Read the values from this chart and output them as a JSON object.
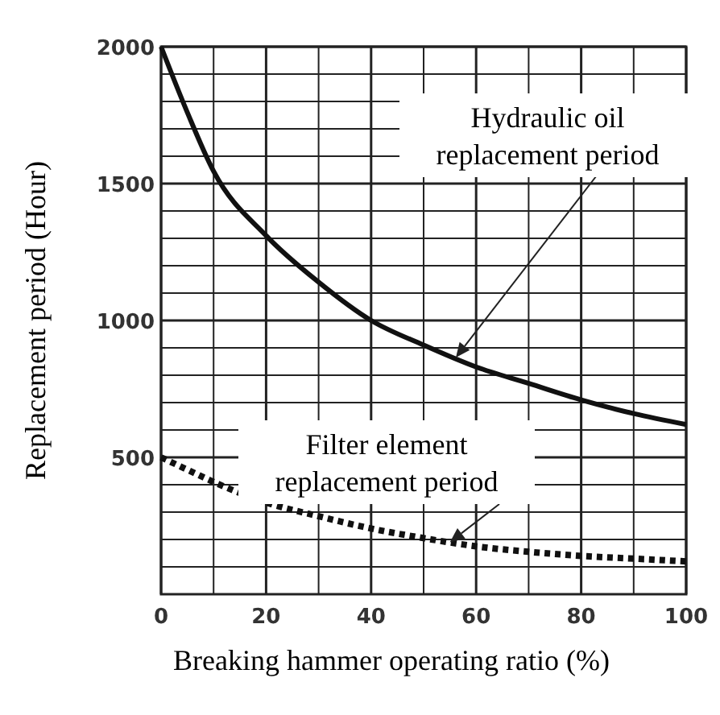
{
  "chart_data": {
    "type": "line",
    "xlabel": "Breaking hammer operating ratio (%)",
    "ylabel": "Replacement period (Hour)",
    "x": [
      0,
      5,
      10,
      20,
      30,
      40,
      50,
      60,
      70,
      80,
      90,
      100
    ],
    "series": [
      {
        "color": "#111111",
        "line_style": "solid",
        "values": [
          2000,
          1760,
          1545,
          1310,
          1140,
          1000,
          910,
          830,
          770,
          710,
          660,
          620
        ]
      },
      {
        "color": "#111111",
        "line_style": "dotted",
        "values": [
          500,
          455,
          410,
          335,
          285,
          240,
          205,
          175,
          155,
          140,
          130,
          120
        ]
      }
    ],
    "xlim": [
      0,
      100
    ],
    "ylim": [
      0,
      2000
    ],
    "xticks": [
      0,
      {
        "value": 10,
        "label": null
      },
      20,
      {
        "value": 30,
        "label": null
      },
      40,
      {
        "value": 50,
        "label": null
      },
      60,
      {
        "value": 70,
        "label": null
      },
      80,
      {
        "value": 90,
        "label": null
      },
      100
    ],
    "yticks": [
      {
        "value": 0,
        "label": null
      },
      {
        "value": 100,
        "label": null
      },
      {
        "value": 200,
        "label": null
      },
      {
        "value": 300,
        "label": null
      },
      {
        "value": 400,
        "label": null
      },
      500,
      {
        "value": 600,
        "label": null
      },
      {
        "value": 700,
        "label": null
      },
      {
        "value": 800,
        "label": null
      },
      {
        "value": 900,
        "label": null
      },
      1000,
      {
        "value": 1100,
        "label": null
      },
      {
        "value": 1200,
        "label": null
      },
      {
        "value": 1300,
        "label": null
      },
      {
        "value": 1400,
        "label": null
      },
      1500,
      {
        "value": 1600,
        "label": null
      },
      {
        "value": 1700,
        "label": null
      },
      {
        "value": 1800,
        "label": null
      },
      {
        "value": 1900,
        "label": null
      },
      2000
    ],
    "grid": true,
    "marker": "none",
    "annotations": [
      "Hydraulic oil replacement period",
      {
        "text": "Filter element replacement period",
        "x": 55,
        "y": 190
      }
    ]
  }
}
